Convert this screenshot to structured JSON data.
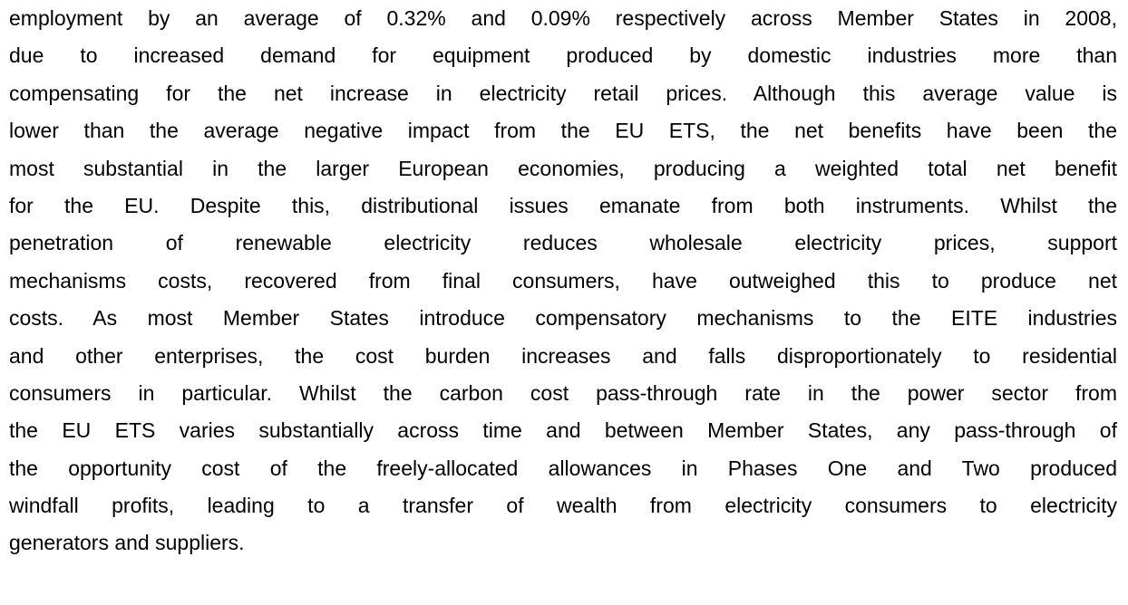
{
  "paragraph": {
    "lines": [
      "employment by an average of 0.32% and 0.09% respectively across Member States in 2008,",
      "due to increased demand for equipment produced by domestic industries more than",
      "compensating for the net increase in electricity retail prices. Although this average value is",
      "lower than the average negative impact from the EU ETS, the net benefits have been the",
      "most substantial in the larger European economies, producing a weighted total net benefit",
      "for the EU. Despite this, distributional issues emanate from both instruments. Whilst the",
      "penetration of renewable electricity reduces wholesale electricity prices, support",
      "mechanisms costs, recovered from final consumers, have outweighed this to produce net",
      "costs. As most Member States introduce compensatory mechanisms to the EITE industries",
      "and other enterprises, the cost burden increases and falls disproportionately to residential",
      "consumers in particular. Whilst the carbon cost pass-through rate in the power sector from",
      "the EU ETS varies substantially across time and between Member States, any pass-through of",
      "the opportunity cost of the freely-allocated allowances in Phases One and Two produced",
      "windfall profits, leading to a transfer of wealth from electricity consumers to electricity",
      "generators and suppliers."
    ]
  }
}
